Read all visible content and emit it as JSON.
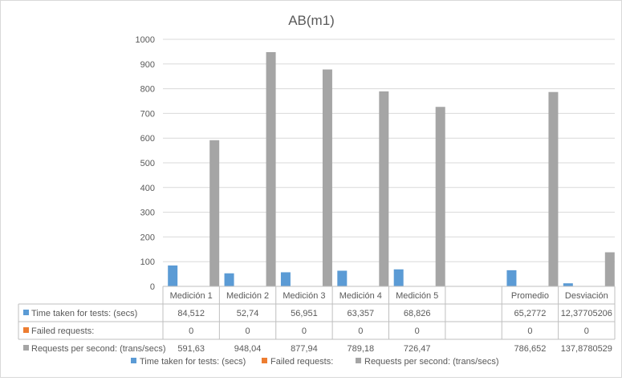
{
  "chart_data": {
    "type": "bar",
    "title": "AB(m1)",
    "xlabel": "",
    "ylabel": "",
    "ylim": [
      0,
      1000
    ],
    "yticks": [
      0,
      100,
      200,
      300,
      400,
      500,
      600,
      700,
      800,
      900,
      1000
    ],
    "grid": true,
    "legend_position": "bottom",
    "categories": [
      "Medición 1",
      "Medición 2",
      "Medición 3",
      "Medición 4",
      "Medición 5",
      "",
      "Promedio",
      "Desviación"
    ],
    "series": [
      {
        "name": "Time taken for tests: (secs)",
        "color": "#5b9bd5",
        "values": [
          84.512,
          52.74,
          56.951,
          63.357,
          68.826,
          null,
          65.2772,
          12.37705206
        ],
        "labels": [
          "84,512",
          "52,74",
          "56,951",
          "63,357",
          "68,826",
          "",
          "65,2772",
          "12,37705206"
        ]
      },
      {
        "name": "Failed requests:",
        "color": "#ed7d31",
        "values": [
          0,
          0,
          0,
          0,
          0,
          null,
          0,
          0
        ],
        "labels": [
          "0",
          "0",
          "0",
          "0",
          "0",
          "",
          "0",
          "0"
        ]
      },
      {
        "name": "Requests per second: (trans/secs)",
        "color": "#a5a5a5",
        "values": [
          591.63,
          948.04,
          877.94,
          789.18,
          726.47,
          null,
          786.652,
          137.8780529
        ],
        "labels": [
          "591,63",
          "948,04",
          "877,94",
          "789,18",
          "726,47",
          "",
          "786,652",
          "137,8780529"
        ]
      }
    ]
  }
}
